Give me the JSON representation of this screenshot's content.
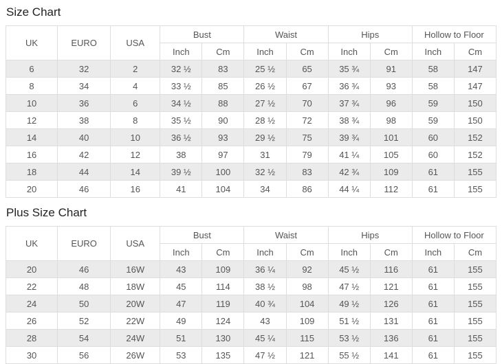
{
  "colors": {
    "stripe_row": "#ebebeb",
    "border": "#dddddd",
    "cell_text": "#555555",
    "title_text": "#222222",
    "background": "#ffffff"
  },
  "size_chart": {
    "title": "Size Chart",
    "header": {
      "single_columns": [
        "UK",
        "EURO",
        "USA"
      ],
      "groups": [
        "Bust",
        "Waist",
        "Hips",
        "Hollow to Floor"
      ],
      "sub_columns": [
        "Inch",
        "Cm"
      ]
    },
    "rows": [
      [
        "6",
        "32",
        "2",
        "32 ½",
        "83",
        "25 ½",
        "65",
        "35 ¾",
        "91",
        "58",
        "147"
      ],
      [
        "8",
        "34",
        "4",
        "33 ½",
        "85",
        "26 ½",
        "67",
        "36 ¾",
        "93",
        "58",
        "147"
      ],
      [
        "10",
        "36",
        "6",
        "34 ½",
        "88",
        "27 ½",
        "70",
        "37 ¾",
        "96",
        "59",
        "150"
      ],
      [
        "12",
        "38",
        "8",
        "35 ½",
        "90",
        "28 ½",
        "72",
        "38 ¾",
        "98",
        "59",
        "150"
      ],
      [
        "14",
        "40",
        "10",
        "36 ½",
        "93",
        "29 ½",
        "75",
        "39 ¾",
        "101",
        "60",
        "152"
      ],
      [
        "16",
        "42",
        "12",
        "38",
        "97",
        "31",
        "79",
        "41 ¼",
        "105",
        "60",
        "152"
      ],
      [
        "18",
        "44",
        "14",
        "39 ½",
        "100",
        "32 ½",
        "83",
        "42 ¾",
        "109",
        "61",
        "155"
      ],
      [
        "20",
        "46",
        "16",
        "41",
        "104",
        "34",
        "86",
        "44 ¼",
        "112",
        "61",
        "155"
      ]
    ]
  },
  "plus_size_chart": {
    "title": "Plus Size Chart",
    "header": {
      "single_columns": [
        "UK",
        "EURO",
        "USA"
      ],
      "groups": [
        "Bust",
        "Waist",
        "Hips",
        "Hollow to Floor"
      ],
      "sub_columns": [
        "Inch",
        "Cm"
      ]
    },
    "rows": [
      [
        "20",
        "46",
        "16W",
        "43",
        "109",
        "36 ¼",
        "92",
        "45 ½",
        "116",
        "61",
        "155"
      ],
      [
        "22",
        "48",
        "18W",
        "45",
        "114",
        "38 ½",
        "98",
        "47 ½",
        "121",
        "61",
        "155"
      ],
      [
        "24",
        "50",
        "20W",
        "47",
        "119",
        "40 ¾",
        "104",
        "49 ½",
        "126",
        "61",
        "155"
      ],
      [
        "26",
        "52",
        "22W",
        "49",
        "124",
        "43",
        "109",
        "51 ½",
        "131",
        "61",
        "155"
      ],
      [
        "28",
        "54",
        "24W",
        "51",
        "130",
        "45 ¼",
        "115",
        "53 ½",
        "136",
        "61",
        "155"
      ],
      [
        "30",
        "56",
        "26W",
        "53",
        "135",
        "47 ½",
        "121",
        "55 ½",
        "141",
        "61",
        "155"
      ]
    ]
  }
}
